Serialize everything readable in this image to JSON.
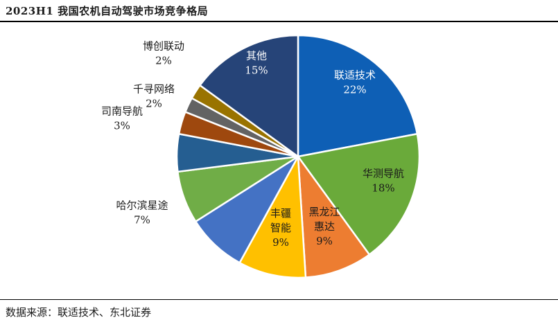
{
  "title": "2023H1 我国农机自动驾驶市场竞争格局",
  "source": "数据来源：联适技术、东北证券",
  "chart_data": {
    "type": "pie",
    "title": "2023H1 我国农机自动驾驶市场竞争格局",
    "slices": [
      {
        "name": "联适技术",
        "value": 22,
        "pct": "22%",
        "color": "#0e5fb5",
        "text_color": "#ffffff",
        "lines": [
          "联适技术"
        ]
      },
      {
        "name": "华测导航",
        "value": 18,
        "pct": "18%",
        "color": "#6aaa3a",
        "text_color": "#1a1a1a",
        "lines": [
          "华测导航"
        ]
      },
      {
        "name": "黑龙江惠达",
        "value": 9,
        "pct": "9%",
        "color": "#ed7d31",
        "text_color": "#1a1a1a",
        "lines": [
          "黑龙江",
          "惠达"
        ]
      },
      {
        "name": "丰疆智能",
        "value": 9,
        "pct": "9%",
        "color": "#ffc000",
        "text_color": "#1a1a1a",
        "lines": [
          "丰疆",
          "智能"
        ]
      },
      {
        "name": "",
        "value": 8,
        "pct": "",
        "color": "#4472c4",
        "text_color": "#1a1a1a",
        "lines": []
      },
      {
        "name": "哈尔滨星途",
        "value": 7,
        "pct": "7%",
        "color": "#70ad47",
        "text_color": "#1a1a1a",
        "lines": [
          "哈尔滨星途"
        ]
      },
      {
        "name": "",
        "value": 5,
        "pct": "",
        "color": "#255e91",
        "text_color": "#1a1a1a",
        "lines": []
      },
      {
        "name": "司南导航",
        "value": 3,
        "pct": "3%",
        "color": "#9e480e",
        "text_color": "#1a1a1a",
        "lines": [
          "司南导航"
        ]
      },
      {
        "name": "千寻网络",
        "value": 2,
        "pct": "2%",
        "color": "#636363",
        "text_color": "#1a1a1a",
        "lines": [
          "千寻网络"
        ]
      },
      {
        "name": "博创联动",
        "value": 2,
        "pct": "2%",
        "color": "#997300",
        "text_color": "#1a1a1a",
        "lines": [
          "博创联动"
        ]
      },
      {
        "name": "其他",
        "value": 15,
        "pct": "15%",
        "color": "#264478",
        "text_color": "#ffffff",
        "lines": [
          "其他"
        ]
      }
    ]
  }
}
